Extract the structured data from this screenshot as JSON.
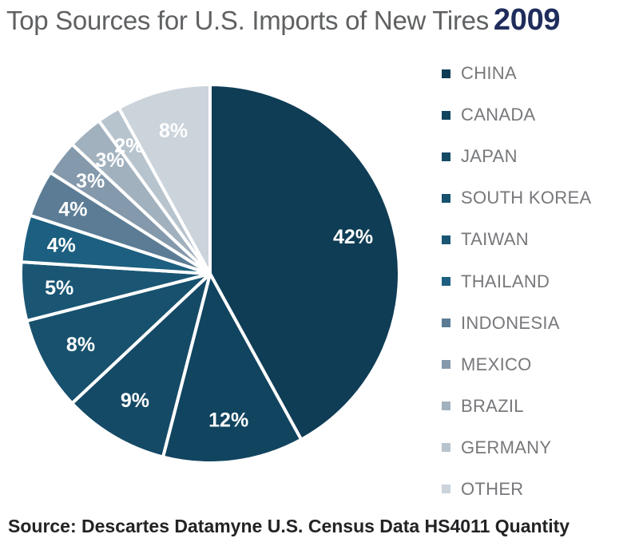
{
  "header": {
    "title": "Top Sources for U.S. Imports of New Tires",
    "year": "2009"
  },
  "footer": {
    "source": "Source: Descartes Datamyne U.S. Census Data HS4011 Quantity"
  },
  "chart_data": {
    "type": "pie",
    "title": "Top Sources for U.S. Imports of New Tires 2009",
    "categories": [
      "CHINA",
      "CANADA",
      "JAPAN",
      "SOUTH KOREA",
      "TAIWAN",
      "THAILAND",
      "INDONESIA",
      "MEXICO",
      "BRAZIL",
      "GERMANY",
      "OTHER"
    ],
    "values": [
      42,
      12,
      9,
      8,
      5,
      4,
      4,
      3,
      3,
      2,
      8
    ],
    "labels": [
      "42%",
      "12%",
      "9%",
      "8%",
      "5%",
      "4%",
      "4%",
      "3%",
      "3%",
      "2%",
      "8%"
    ],
    "colors": [
      "#0f3d55",
      "#11445f",
      "#154a66",
      "#17516d",
      "#1a5674",
      "#1c5f80",
      "#5b7c94",
      "#8499ab",
      "#a2b1be",
      "#b7c3cd",
      "#cbd3db"
    ],
    "unit": "%",
    "start_angle": "12 o'clock",
    "direction": "clockwise",
    "legend_position": "right",
    "source": "Descartes Datamyne U.S. Census Data HS4011 Quantity"
  }
}
